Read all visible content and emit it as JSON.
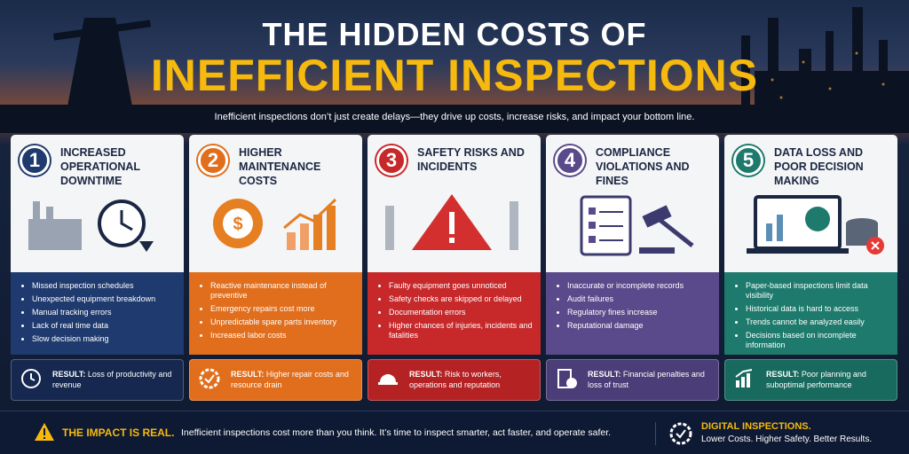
{
  "header": {
    "title_line1": "THE HIDDEN COSTS OF",
    "title_line2": "INEFFICIENT INSPECTIONS",
    "subtitle": "Inefficient inspections don’t just create delays—they drive up costs, increase risks, and impact your bottom line."
  },
  "cards": [
    {
      "number": "1",
      "title": "INCREASED OPERATIONAL DOWNTIME",
      "bullets": [
        "Missed inspection schedules",
        "Unexpected equipment breakdown",
        "Manual tracking errors",
        "Lack of real time data",
        "Slow decision making"
      ],
      "result_label": "RESULT:",
      "result_text": "Loss of productivity and revenue"
    },
    {
      "number": "2",
      "title": "HIGHER MAINTENANCE COSTS",
      "bullets": [
        "Reactive maintenance instead of preventive",
        "Emergency repairs cost more",
        "Unpredictable spare parts inventory",
        "Increased labor costs"
      ],
      "result_label": "RESULT:",
      "result_text": "Higher repair costs and resource drain"
    },
    {
      "number": "3",
      "title": "SAFETY RISKS AND INCIDENTS",
      "bullets": [
        "Faulty equipment goes unnoticed",
        "Safety checks are skipped or delayed",
        "Documentation errors",
        "Higher chances of injuries, incidents and fatalities"
      ],
      "result_label": "RESULT:",
      "result_text": "Risk to workers, operations and reputation"
    },
    {
      "number": "4",
      "title": "COMPLIANCE VIOLATIONS AND FINES",
      "bullets": [
        "Inaccurate or incomplete records",
        "Audit failures",
        "Regulatory fines increase",
        "Reputational damage"
      ],
      "result_label": "RESULT:",
      "result_text": "Financial penalties and loss of trust"
    },
    {
      "number": "5",
      "title": "DATA LOSS AND POOR DECISION MAKING",
      "bullets": [
        "Paper-based inspections limit data visibility",
        "Historical data is hard to access",
        "Trends cannot be analyzed easily",
        "Decisions based on incomplete information"
      ],
      "result_label": "RESULT:",
      "result_text": "Poor planning and suboptimal performance"
    }
  ],
  "footer": {
    "impact_label": "THE IMPACT IS REAL.",
    "impact_text": "Inefficient inspections cost more than you think. It’s time to inspect smarter, act faster, and operate safer.",
    "cta_title": "DIGITAL INSPECTIONS.",
    "cta_text": "Lower Costs. Higher Safety. Better Results."
  }
}
